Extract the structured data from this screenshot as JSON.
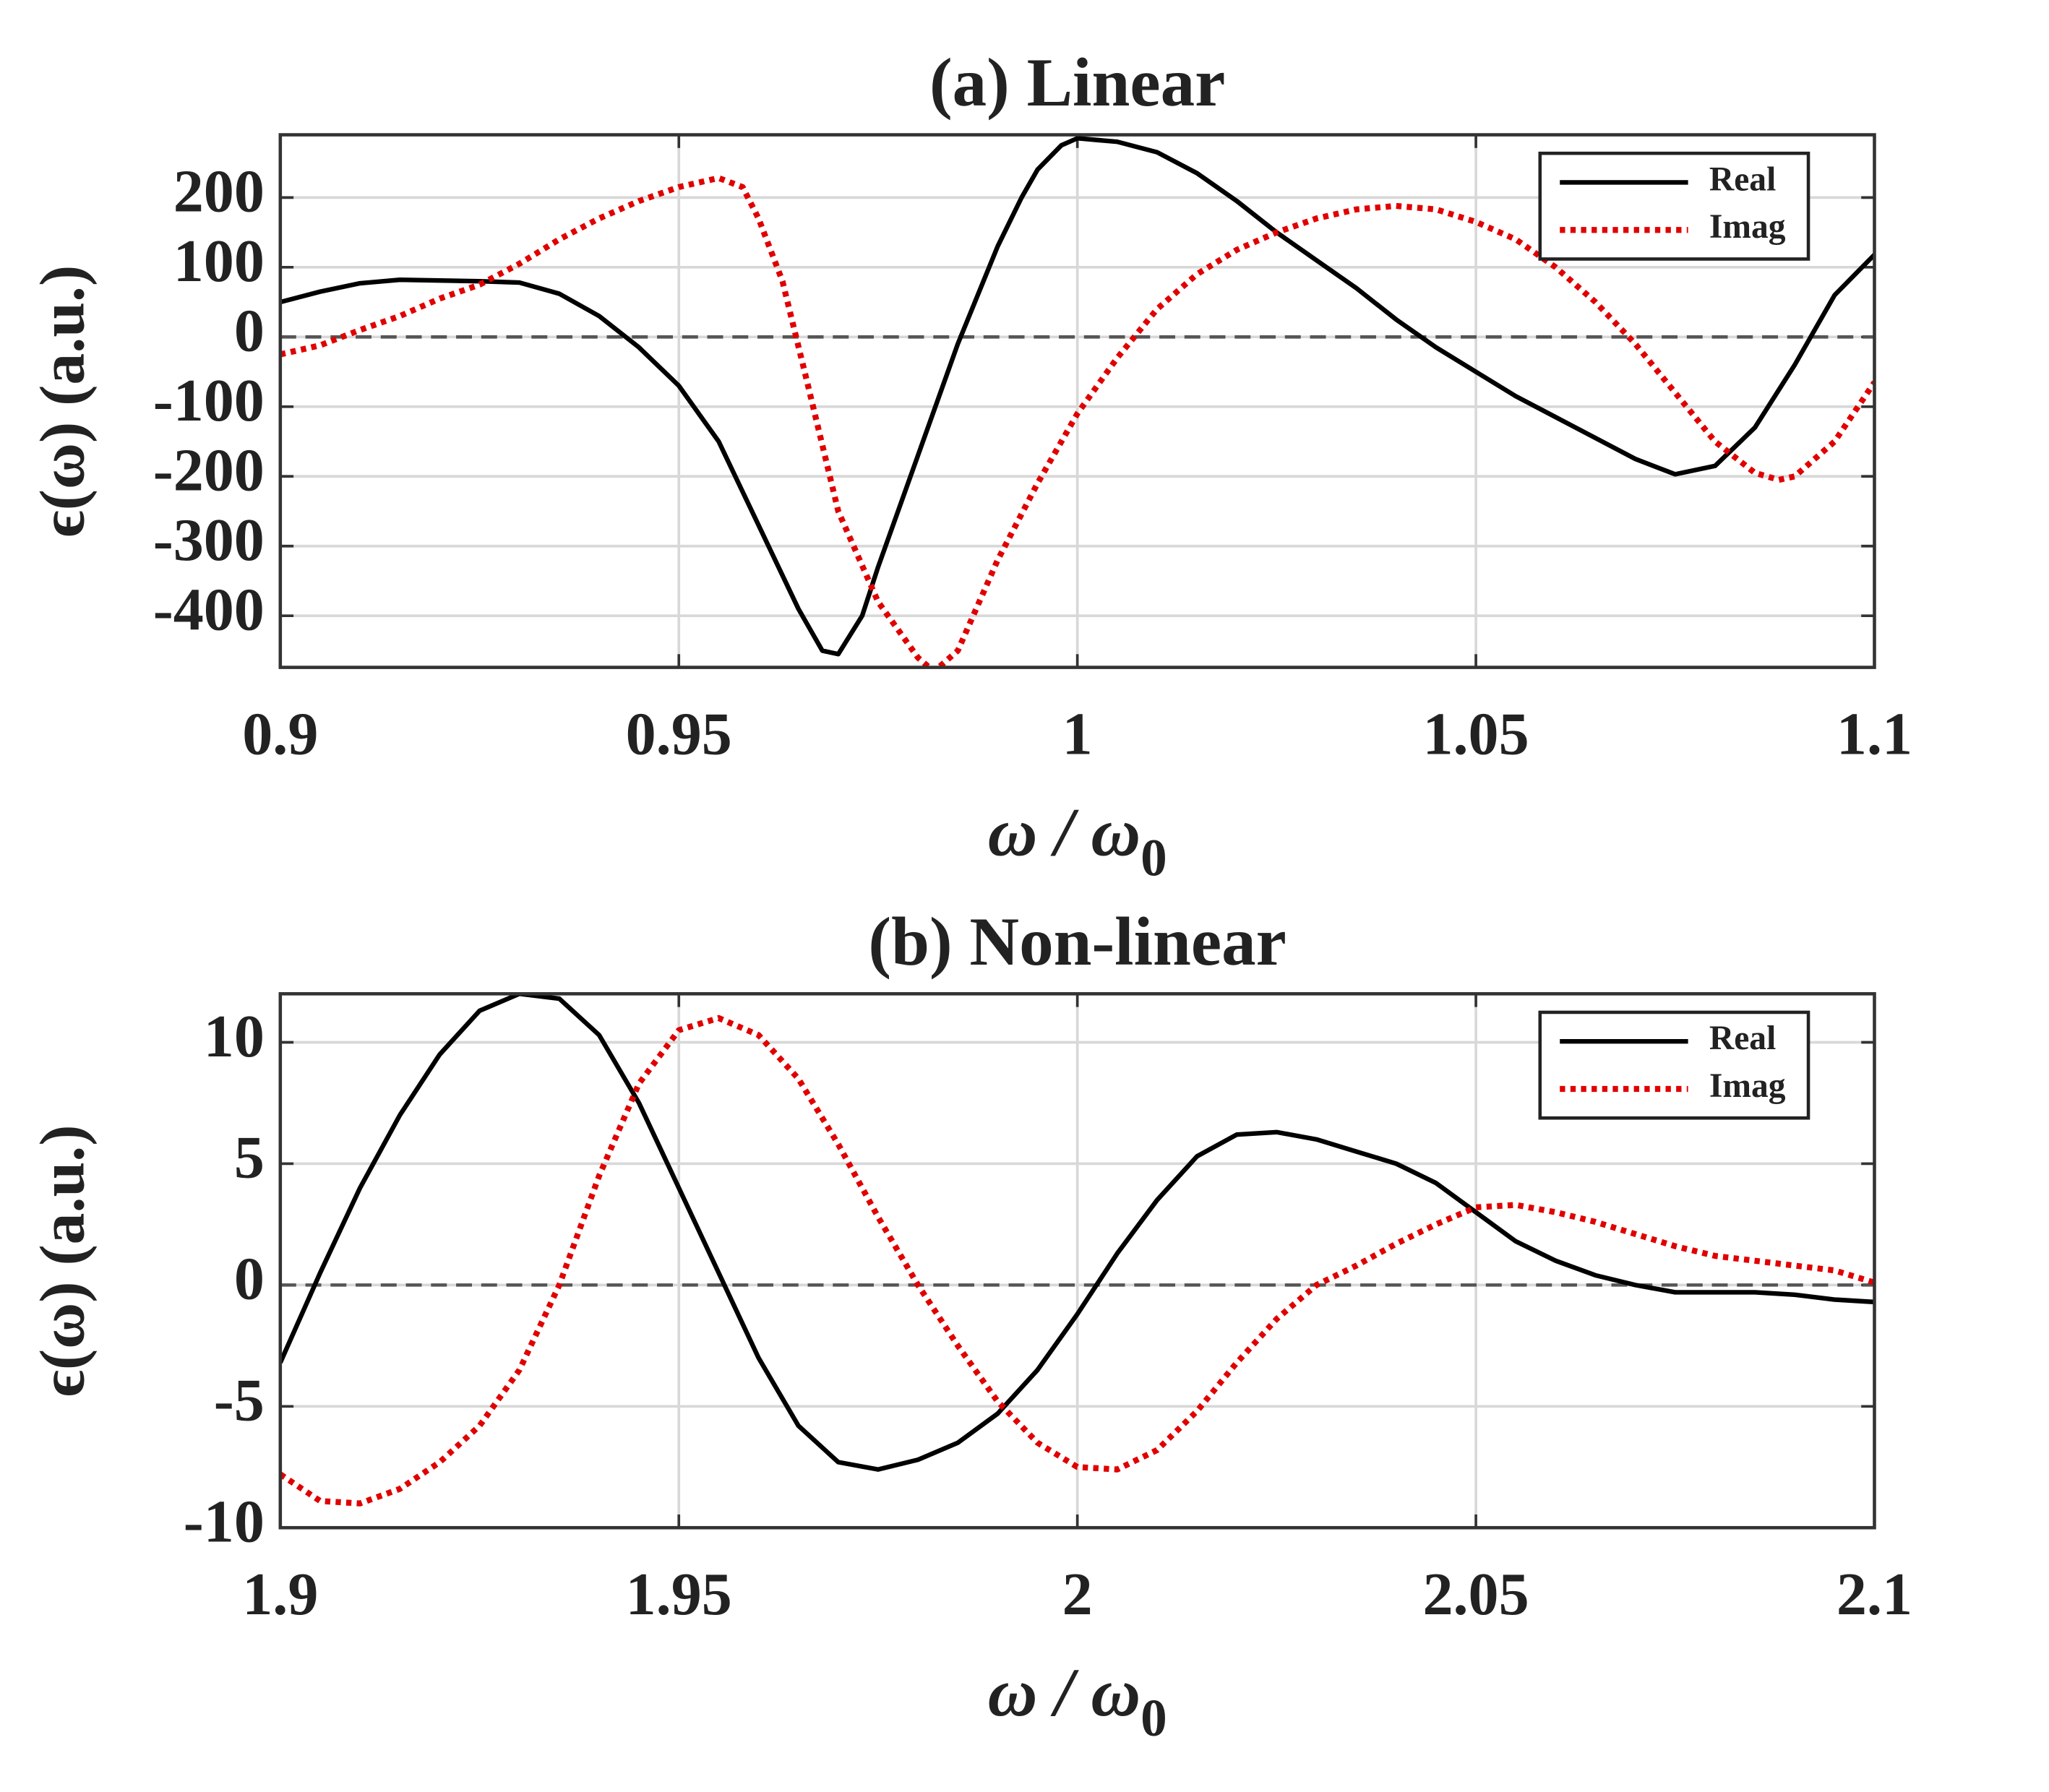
{
  "chart_data": [
    {
      "type": "line",
      "title": "(a) Linear",
      "xlabel": "ω / ω",
      "xlabel_subscript": "0",
      "ylabel": "ϵ(ω) (a.u.)",
      "xlim": [
        0.9,
        1.1
      ],
      "xticks": [
        0.9,
        0.95,
        1,
        1.05,
        1.1
      ],
      "ylim": [
        -474,
        290
      ],
      "yticks": [
        -400,
        -300,
        -200,
        -100,
        0,
        100,
        200
      ],
      "grid": true,
      "hlines": [
        0
      ],
      "legend": "upper right",
      "series": [
        {
          "name": "Real",
          "color": "#000000",
          "style": "solid",
          "x": [
            0.9,
            0.905,
            0.91,
            0.915,
            0.92,
            0.925,
            0.93,
            0.935,
            0.94,
            0.945,
            0.95,
            0.955,
            0.96,
            0.965,
            0.968,
            0.97,
            0.973,
            0.975,
            0.98,
            0.985,
            0.99,
            0.993,
            0.995,
            0.998,
            1.0,
            1.005,
            1.01,
            1.015,
            1.02,
            1.025,
            1.03,
            1.035,
            1.04,
            1.045,
            1.05,
            1.055,
            1.06,
            1.065,
            1.07,
            1.075,
            1.08,
            1.085,
            1.09,
            1.095,
            1.1
          ],
          "values": [
            50,
            65,
            77,
            82,
            81,
            80,
            78,
            62,
            30,
            -15,
            -70,
            -150,
            -270,
            -390,
            -450,
            -455,
            -400,
            -330,
            -170,
            -10,
            130,
            200,
            240,
            275,
            285,
            280,
            265,
            235,
            195,
            150,
            110,
            70,
            25,
            -15,
            -50,
            -85,
            -115,
            -145,
            -175,
            -197,
            -185,
            -130,
            -40,
            60,
            118
          ]
        },
        {
          "name": "Imag",
          "color": "#e00000",
          "style": "dotted",
          "x": [
            0.9,
            0.905,
            0.91,
            0.915,
            0.92,
            0.925,
            0.93,
            0.935,
            0.94,
            0.945,
            0.95,
            0.955,
            0.958,
            0.96,
            0.963,
            0.966,
            0.97,
            0.975,
            0.98,
            0.982,
            0.985,
            0.99,
            0.995,
            1.0,
            1.005,
            1.01,
            1.015,
            1.02,
            1.025,
            1.03,
            1.035,
            1.04,
            1.045,
            1.05,
            1.055,
            1.06,
            1.065,
            1.07,
            1.075,
            1.08,
            1.085,
            1.088,
            1.09,
            1.095,
            1.1
          ],
          "values": [
            -25,
            -12,
            10,
            30,
            55,
            75,
            105,
            140,
            170,
            195,
            215,
            228,
            215,
            170,
            80,
            -60,
            -250,
            -380,
            -460,
            -480,
            -450,
            -320,
            -210,
            -110,
            -30,
            40,
            90,
            125,
            150,
            170,
            183,
            188,
            183,
            165,
            140,
            100,
            50,
            -10,
            -80,
            -150,
            -195,
            -205,
            -200,
            -150,
            -65
          ]
        }
      ]
    },
    {
      "type": "line",
      "title": "(b) Non-linear",
      "xlabel": "ω / ω",
      "xlabel_subscript": "0",
      "ylabel": "ϵ(ω) (a.u.)",
      "xlim": [
        1.9,
        2.1
      ],
      "xticks": [
        1.9,
        1.95,
        2,
        2.05,
        2.1
      ],
      "ylim": [
        -10,
        12
      ],
      "yticks": [
        -10,
        -5,
        0,
        5,
        10
      ],
      "grid": true,
      "hlines": [
        0
      ],
      "legend": "upper right",
      "series": [
        {
          "name": "Real",
          "color": "#000000",
          "style": "solid",
          "x": [
            1.9,
            1.905,
            1.91,
            1.915,
            1.92,
            1.925,
            1.93,
            1.935,
            1.94,
            1.945,
            1.95,
            1.955,
            1.96,
            1.965,
            1.97,
            1.975,
            1.98,
            1.985,
            1.99,
            1.995,
            2.0,
            2.005,
            2.01,
            2.015,
            2.02,
            2.025,
            2.03,
            2.035,
            2.04,
            2.045,
            2.05,
            2.055,
            2.06,
            2.065,
            2.07,
            2.075,
            2.08,
            2.085,
            2.09,
            2.095,
            2.1
          ],
          "values": [
            -3.2,
            0.5,
            4,
            7,
            9.5,
            11.3,
            12,
            11.8,
            10.3,
            7.5,
            4,
            0.5,
            -3,
            -5.8,
            -7.3,
            -7.6,
            -7.2,
            -6.5,
            -5.3,
            -3.5,
            -1.2,
            1.3,
            3.5,
            5.3,
            6.2,
            6.3,
            6,
            5.5,
            5,
            4.2,
            3,
            1.8,
            1,
            0.4,
            0,
            -0.3,
            -0.3,
            -0.3,
            -0.4,
            -0.6,
            -0.7
          ]
        },
        {
          "name": "Imag",
          "color": "#e00000",
          "style": "dotted",
          "x": [
            1.9,
            1.905,
            1.91,
            1.915,
            1.92,
            1.925,
            1.93,
            1.935,
            1.94,
            1.945,
            1.95,
            1.955,
            1.96,
            1.965,
            1.97,
            1.975,
            1.98,
            1.985,
            1.99,
            1.995,
            2.0,
            2.005,
            2.01,
            2.015,
            2.02,
            2.025,
            2.03,
            2.035,
            2.04,
            2.045,
            2.05,
            2.055,
            2.06,
            2.065,
            2.07,
            2.075,
            2.08,
            2.085,
            2.09,
            2.095,
            2.1
          ],
          "values": [
            -7.8,
            -8.9,
            -9,
            -8.4,
            -7.3,
            -5.8,
            -3.5,
            0,
            4.5,
            8.3,
            10.5,
            11,
            10.3,
            8.5,
            5.8,
            2.8,
            0,
            -2.5,
            -4.8,
            -6.5,
            -7.5,
            -7.6,
            -6.8,
            -5.2,
            -3.2,
            -1.4,
            0,
            0.8,
            1.7,
            2.5,
            3.2,
            3.3,
            3,
            2.6,
            2.1,
            1.6,
            1.2,
            1,
            0.8,
            0.6,
            0.1
          ]
        }
      ]
    }
  ]
}
